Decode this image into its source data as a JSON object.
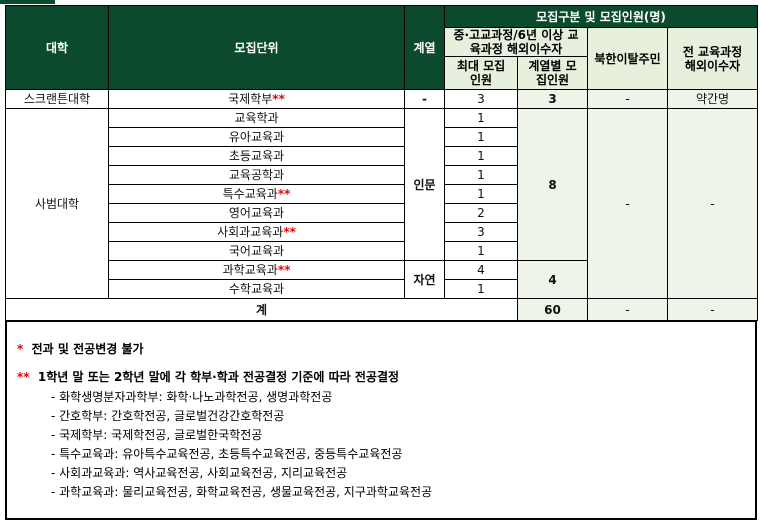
{
  "header": {
    "university": "대학",
    "unit": "모집단위",
    "track": "계열",
    "category_group": "모집구분 및 모집인원(명)",
    "overseas6": "중·고교과정/6년 이상 교육과정 해외이수자",
    "max": "최대 모집인원",
    "by_track": "계열별 모집인원",
    "defector": "북한이탈주민",
    "overseas_all": "전 교육과정 해외이수자"
  },
  "scranton": {
    "university": "스크랜튼대학",
    "unit": "국제학부",
    "mark": "**",
    "track": "-",
    "max": "3",
    "by_track": "3",
    "defector": "-",
    "overseas_all": "약간명"
  },
  "education": {
    "university": "사범대학",
    "rows": [
      {
        "unit": "교육학과",
        "mark": "",
        "max": "1"
      },
      {
        "unit": "유아교육과",
        "mark": "",
        "max": "1"
      },
      {
        "unit": "초등교육과",
        "mark": "",
        "max": "1"
      },
      {
        "unit": "교육공학과",
        "mark": "",
        "max": "1"
      },
      {
        "unit": "특수교육과",
        "mark": "**",
        "max": "1"
      },
      {
        "unit": "영어교육과",
        "mark": "",
        "max": "2"
      },
      {
        "unit": "사회과교육과",
        "mark": "**",
        "max": "3"
      },
      {
        "unit": "국어교육과",
        "mark": "",
        "max": "1"
      },
      {
        "unit": "과학교육과",
        "mark": "**",
        "max": "4"
      },
      {
        "unit": "수학교육과",
        "mark": "",
        "max": "1"
      }
    ],
    "humanities": "인문",
    "humanities_total": "8",
    "science": "자연",
    "science_total": "4",
    "defector": "-",
    "overseas_all": "-"
  },
  "total": {
    "label": "계",
    "by_track": "60",
    "defector": "-",
    "overseas_all": "-"
  },
  "notes": {
    "n1_mark": "*",
    "n1": "전과 및 전공변경 불가",
    "n2_mark": "**",
    "n2": "1학년 말 또는 2학년 말에 각 학부·학과 전공결정 기준에 따라 전공결정",
    "items": [
      "- 화학생명분자과학부: 화학·나노과학전공, 생명과학전공",
      "- 간호학부: 간호학전공, 글로벌건강간호학전공",
      "- 국제학부: 국제학전공, 글로벌한국학전공",
      "- 특수교육과: 유아특수교육전공, 초등특수교육전공, 중등특수교육전공",
      "- 사회과교육과: 역사교육전공, 사회교육전공, 지리교육전공",
      "- 과학교육과: 물리교육전공, 화학교육전공, 생물교육전공, 지구과학교육전공"
    ]
  }
}
